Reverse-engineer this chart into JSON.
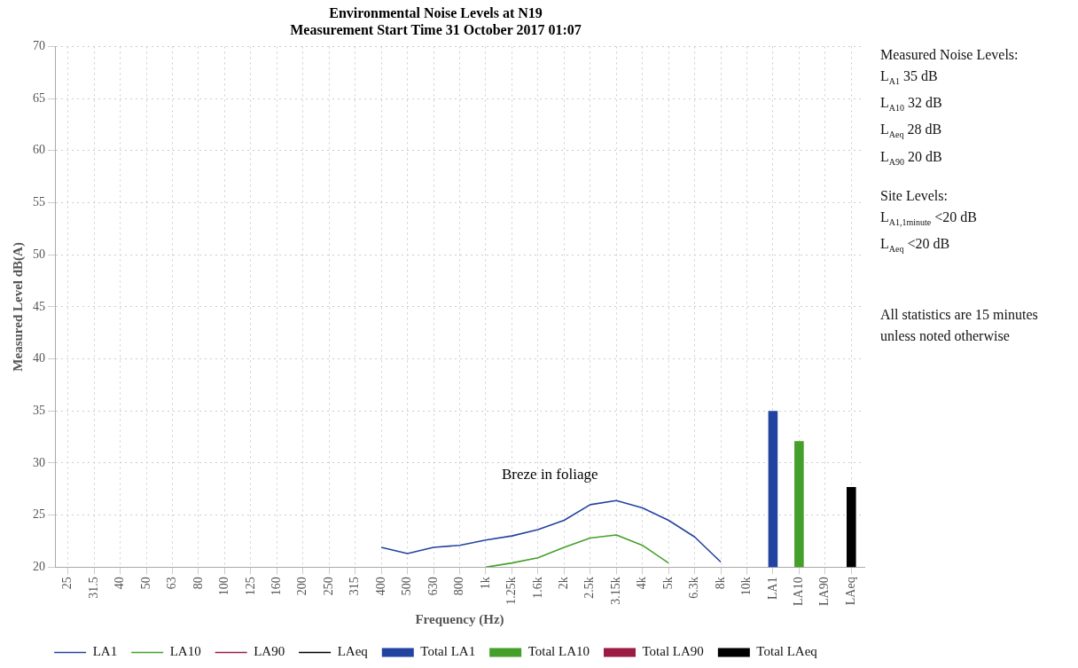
{
  "chart_data": {
    "type": "line",
    "title": "Environmental Noise Levels at N19",
    "subtitle": "Measurement Start Time 31 October 2017 01:07",
    "xlabel": "Frequency (Hz)",
    "ylabel": "Measured Level dB(A)",
    "categories": [
      "25",
      "31.5",
      "40",
      "50",
      "63",
      "80",
      "100",
      "125",
      "160",
      "200",
      "250",
      "315",
      "400",
      "500",
      "630",
      "800",
      "1k",
      "1.25k",
      "1.6k",
      "2k",
      "2.5k",
      "3.15k",
      "4k",
      "5k",
      "6.3k",
      "8k",
      "10k",
      "LA1",
      "LA10",
      "LA90",
      "LAeq"
    ],
    "series": [
      {
        "name": "LA1",
        "color": "#2244a0",
        "values": [
          null,
          null,
          null,
          null,
          null,
          null,
          null,
          null,
          null,
          null,
          null,
          null,
          21.9,
          21.3,
          21.9,
          22.1,
          22.6,
          23.0,
          23.6,
          24.5,
          26.0,
          26.4,
          25.7,
          24.5,
          22.9,
          20.5,
          null,
          null,
          null,
          null,
          null
        ]
      },
      {
        "name": "LA10",
        "color": "#44a02a",
        "values": [
          null,
          null,
          null,
          null,
          null,
          null,
          null,
          null,
          null,
          null,
          null,
          null,
          null,
          null,
          null,
          null,
          20.0,
          20.4,
          20.9,
          21.9,
          22.8,
          23.1,
          22.1,
          20.4,
          null,
          null,
          null,
          null,
          null,
          null,
          null
        ]
      },
      {
        "name": "LA90",
        "color": "#9b1b42",
        "values": [
          null,
          null,
          null,
          null,
          null,
          null,
          null,
          null,
          null,
          null,
          null,
          null,
          null,
          null,
          null,
          null,
          null,
          null,
          null,
          null,
          null,
          null,
          null,
          null,
          null,
          null,
          null,
          null,
          null,
          null,
          null
        ]
      },
      {
        "name": "LAeq",
        "color": "#000000",
        "values": [
          null,
          null,
          null,
          null,
          null,
          null,
          null,
          null,
          null,
          null,
          null,
          null,
          null,
          null,
          null,
          null,
          null,
          null,
          null,
          null,
          null,
          null,
          null,
          null,
          null,
          null,
          null,
          null,
          null,
          null,
          null
        ]
      },
      {
        "name": "Total LA1",
        "type": "bar",
        "color": "#2244a0",
        "values": [
          null,
          null,
          null,
          null,
          null,
          null,
          null,
          null,
          null,
          null,
          null,
          null,
          null,
          null,
          null,
          null,
          null,
          null,
          null,
          null,
          null,
          null,
          null,
          null,
          null,
          null,
          null,
          35.0,
          null,
          null,
          null
        ]
      },
      {
        "name": "Total LA10",
        "type": "bar",
        "color": "#44a02a",
        "values": [
          null,
          null,
          null,
          null,
          null,
          null,
          null,
          null,
          null,
          null,
          null,
          null,
          null,
          null,
          null,
          null,
          null,
          null,
          null,
          null,
          null,
          null,
          null,
          null,
          null,
          null,
          null,
          null,
          32.1,
          null,
          null
        ]
      },
      {
        "name": "Total LA90",
        "type": "bar",
        "color": "#9b1b42",
        "values": [
          null,
          null,
          null,
          null,
          null,
          null,
          null,
          null,
          null,
          null,
          null,
          null,
          null,
          null,
          null,
          null,
          null,
          null,
          null,
          null,
          null,
          null,
          null,
          null,
          null,
          null,
          null,
          null,
          null,
          null,
          null
        ]
      },
      {
        "name": "Total LAeq",
        "type": "bar",
        "color": "#000000",
        "values": [
          null,
          null,
          null,
          null,
          null,
          null,
          null,
          null,
          null,
          null,
          null,
          null,
          null,
          null,
          null,
          null,
          null,
          null,
          null,
          null,
          null,
          null,
          null,
          null,
          null,
          null,
          null,
          null,
          null,
          null,
          27.7
        ]
      }
    ],
    "ylim": [
      20,
      70
    ],
    "yticks": [
      20,
      25,
      30,
      35,
      40,
      45,
      50,
      55,
      60,
      65,
      70
    ],
    "grid": true,
    "legend": "bottom",
    "marker": "none",
    "line_style": "solid",
    "annotations": [
      "Breze in foliage",
      "Measured Noise Levels:",
      "L$_{A1}$ 35 dB",
      "L$_{A10}$ 32 dB",
      "L$_{Aeq}$ 28 dB",
      "L$_{A90}$ 20 dB",
      "Site Levels:",
      "L$_{A1,1minute}$ <20 dB",
      "L$_{Aeq}$ <20 dB",
      "All statistics are 15 minutes unless noted otherwise"
    ]
  }
}
